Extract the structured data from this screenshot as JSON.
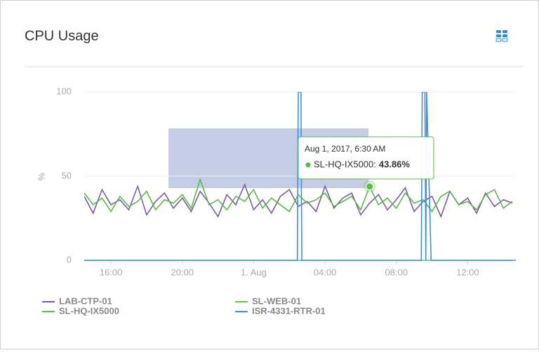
{
  "chart_data": {
    "type": "line",
    "title": "CPU Usage",
    "y_label": "%",
    "x": [
      14.5,
      15,
      15.5,
      16,
      16.5,
      17,
      17.5,
      18,
      18.5,
      19,
      19.5,
      20,
      20.5,
      21,
      21.5,
      22,
      22.5,
      23,
      23.5,
      24,
      24.5,
      25,
      25.5,
      26,
      26.5,
      27,
      27.5,
      28,
      28.5,
      29,
      29.5,
      30,
      30.5,
      31,
      31.5,
      32,
      32.5,
      33,
      33.5,
      34,
      34.5,
      35,
      35.5,
      36,
      36.5,
      37,
      37.5,
      38,
      38.5
    ],
    "xlim": [
      14.5,
      38.7
    ],
    "xticks": [
      {
        "value": 16,
        "label": "16:00"
      },
      {
        "value": 20,
        "label": "20:00"
      },
      {
        "value": 24,
        "label": "1. Aug"
      },
      {
        "value": 28,
        "label": "04:00"
      },
      {
        "value": 32,
        "label": "08:00"
      },
      {
        "value": 36,
        "label": "12:00"
      }
    ],
    "ylim": [
      0,
      100
    ],
    "yticks": [
      0,
      50,
      100
    ],
    "grid": true,
    "series": [
      {
        "name": "LAB-CTP-01",
        "color": "#7b5aa6",
        "values": [
          38,
          28,
          42,
          33,
          36,
          30,
          44,
          27,
          35,
          40,
          31,
          37,
          29,
          41,
          34,
          26,
          39,
          33,
          45,
          30,
          36,
          28,
          38,
          42,
          32,
          35,
          29,
          44,
          31,
          37,
          40,
          27,
          34,
          39,
          30,
          36,
          43,
          29,
          35,
          38,
          26,
          41,
          33,
          37,
          28,
          40,
          32,
          36,
          34
        ]
      },
      {
        "name": "SL-WEB-01",
        "color": "#6cc24a",
        "values": [
          0,
          0,
          0,
          0,
          0,
          0,
          0,
          0,
          0,
          0,
          0,
          0,
          0,
          0,
          0,
          0,
          0,
          0,
          0,
          0,
          0,
          0,
          0,
          0,
          0,
          0,
          0,
          0,
          0,
          0,
          0,
          0,
          0,
          0,
          0,
          0,
          0,
          0,
          0,
          0,
          0,
          0,
          0,
          0,
          0,
          0,
          0,
          0,
          0
        ]
      },
      {
        "name": "SL-HQ-IX5000",
        "color": "#5cb848",
        "values": [
          40,
          33,
          37,
          29,
          38,
          32,
          35,
          41,
          30,
          36,
          34,
          39,
          31,
          48,
          33,
          36,
          30,
          38,
          35,
          42,
          31,
          37,
          33,
          29,
          39,
          34,
          36,
          40,
          32,
          35,
          38,
          30,
          43.86,
          33,
          37,
          31,
          40,
          34,
          36,
          29,
          38,
          41,
          33,
          35,
          30,
          39,
          42,
          31,
          35
        ]
      },
      {
        "name": "ISR-4331-RTR-01",
        "color": "#3f8fe0",
        "x": [
          14.5,
          26.45,
          26.5,
          26.65,
          26.7,
          33.4,
          33.45,
          33.6,
          33.65,
          33.7,
          33.95,
          38.7
        ],
        "values": [
          0,
          0,
          100,
          100,
          0,
          0,
          100,
          100,
          0,
          100,
          0,
          0
        ]
      }
    ],
    "tooltip": {
      "title": "Aug 1, 2017, 6:30 AM",
      "label": "SL-HQ-IX5000:",
      "x": 30.5,
      "value": 43.86,
      "value_label": "43.86%",
      "color": "#5cb848"
    }
  }
}
